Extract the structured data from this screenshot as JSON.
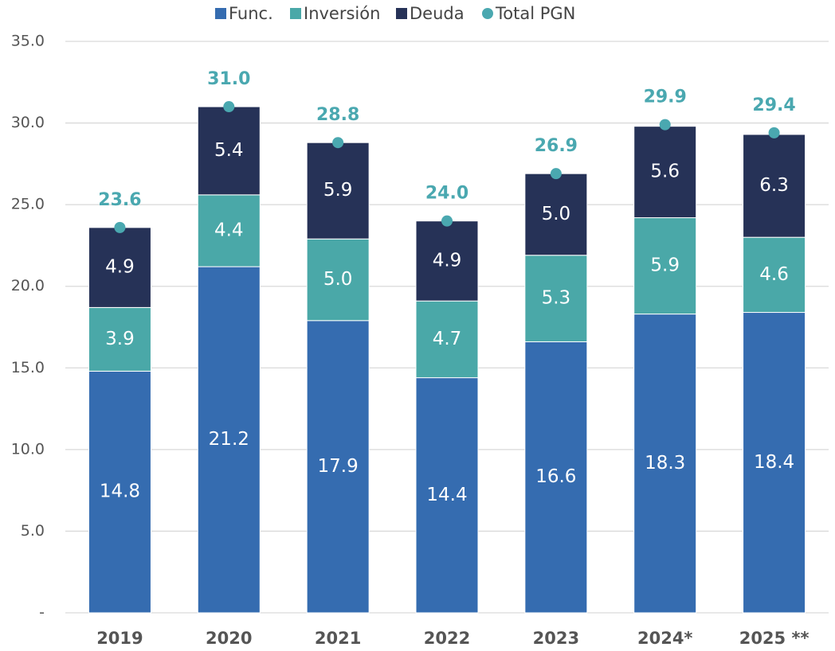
{
  "chart_data": {
    "type": "bar",
    "stacked": true,
    "categories": [
      "2019",
      "2020",
      "2021",
      "2022",
      "2023",
      "2024*",
      "2025 **"
    ],
    "series": [
      {
        "name": "Func.",
        "type": "bar",
        "color": "#356cb0",
        "values": [
          14.8,
          21.2,
          17.9,
          14.4,
          16.6,
          18.3,
          18.4
        ]
      },
      {
        "name": "Inversión",
        "type": "bar",
        "color": "#4aa8a8",
        "values": [
          3.9,
          4.4,
          5.0,
          4.7,
          5.3,
          5.9,
          4.6
        ],
        "value_labels": [
          "3.9",
          "4.4",
          "5.0",
          "4.7",
          "5.3",
          "5.9",
          "4.6"
        ]
      },
      {
        "name": "Deuda",
        "type": "bar",
        "color": "#263257",
        "values": [
          4.9,
          5.4,
          5.9,
          4.9,
          5.0,
          5.6,
          6.3
        ],
        "value_labels": [
          "4.9",
          "5.4",
          "5.9",
          "4.9",
          "5.0",
          "5.6",
          "6.3"
        ]
      },
      {
        "name": "Total PGN",
        "type": "scatter",
        "color": "#4aa8b0",
        "values": [
          23.6,
          31.0,
          28.8,
          24.0,
          26.9,
          29.9,
          29.4
        ],
        "value_labels": [
          "23.6",
          "31.0",
          "28.8",
          "24.0",
          "26.9",
          "29.9",
          "29.4"
        ]
      }
    ],
    "ylim": [
      0,
      35
    ],
    "yticks": [
      {
        "value": 0,
        "label": "-"
      },
      {
        "value": 5,
        "label": "5.0"
      },
      {
        "value": 10,
        "label": "10.0"
      },
      {
        "value": 15,
        "label": "15.0"
      },
      {
        "value": 20,
        "label": "20.0"
      },
      {
        "value": 25,
        "label": "25.0"
      },
      {
        "value": 30,
        "label": "30.0"
      },
      {
        "value": 35,
        "label": "35.0"
      }
    ],
    "grid": true
  }
}
